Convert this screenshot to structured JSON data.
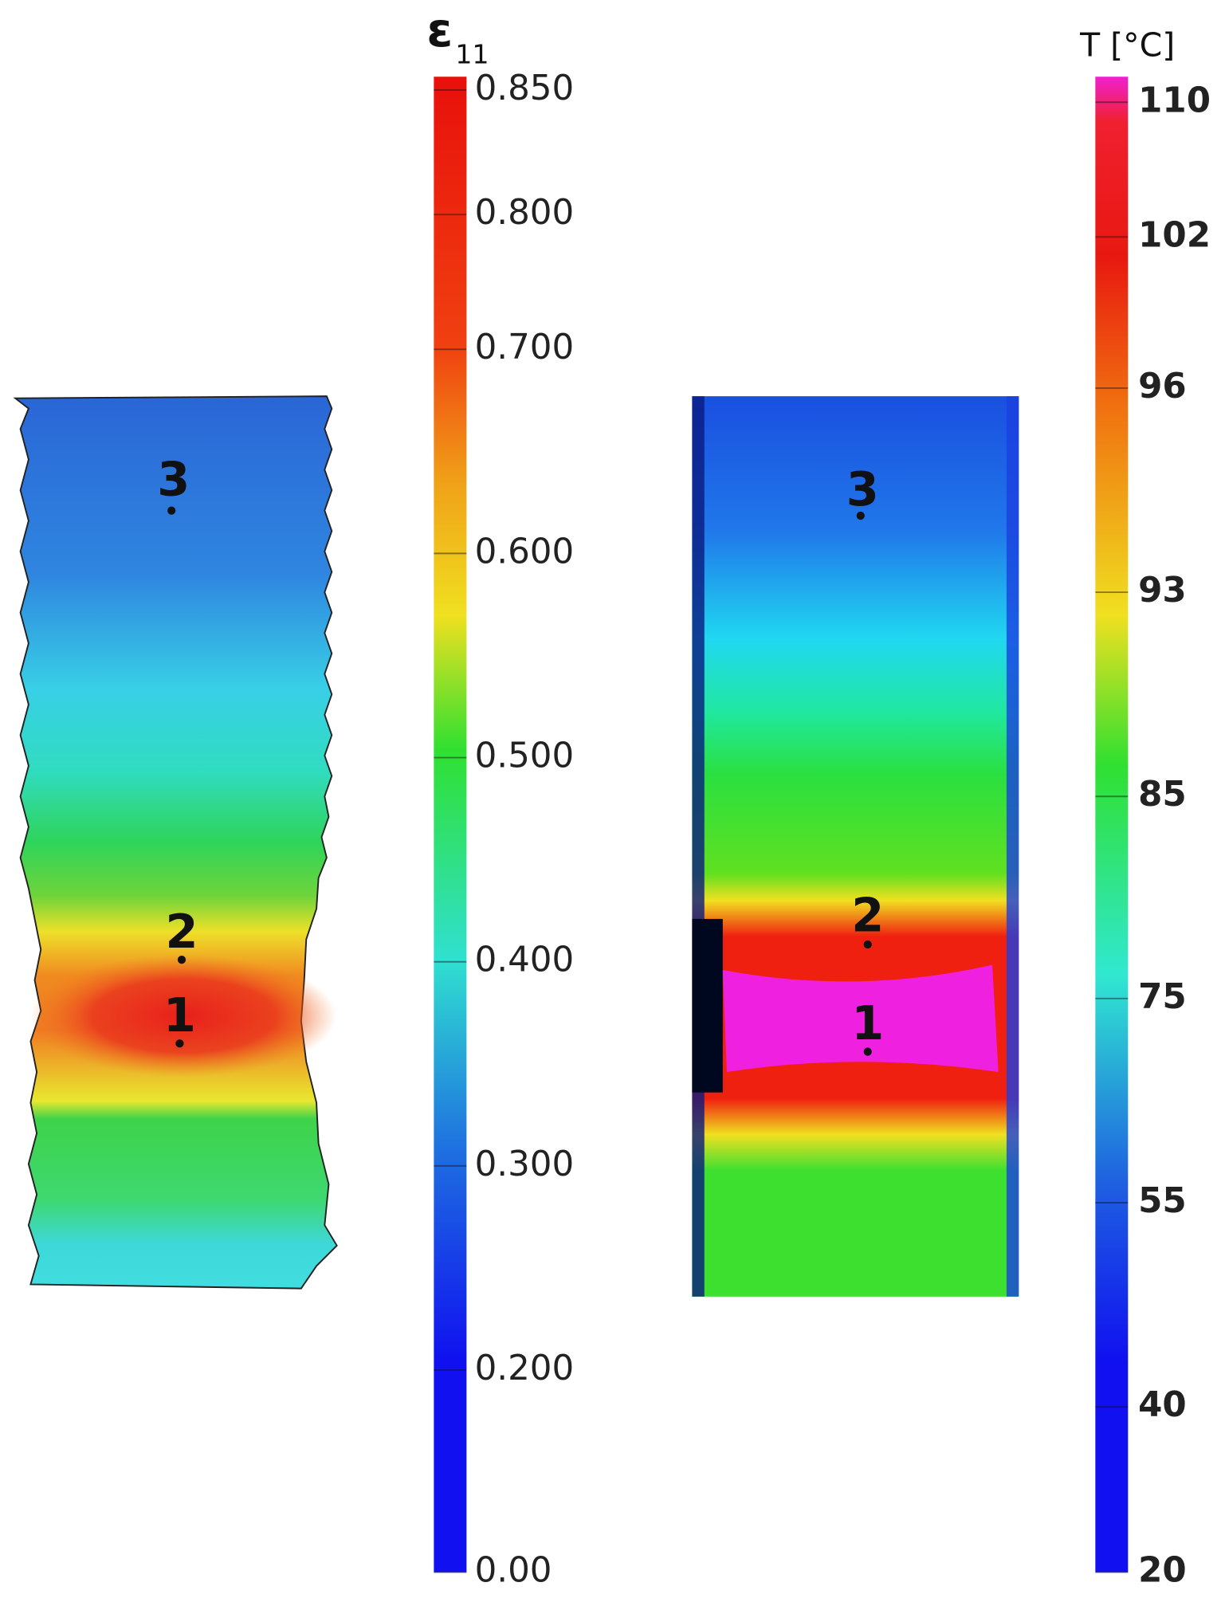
{
  "left_panel": {
    "colorbar": {
      "title": "ε",
      "title_subscript": "11",
      "ticks": [
        "0.850",
        "0.800",
        "0.700",
        "0.600",
        "0.500",
        "0.400",
        "0.300",
        "0.200",
        "0.00"
      ]
    },
    "points": [
      "3",
      "2",
      "1"
    ]
  },
  "right_panel": {
    "colorbar": {
      "title": "T [°C]",
      "ticks": [
        "110",
        "102",
        "96",
        "93",
        "85",
        "75",
        "55",
        "40",
        "20"
      ]
    },
    "points": [
      "3",
      "2",
      "1"
    ]
  }
}
